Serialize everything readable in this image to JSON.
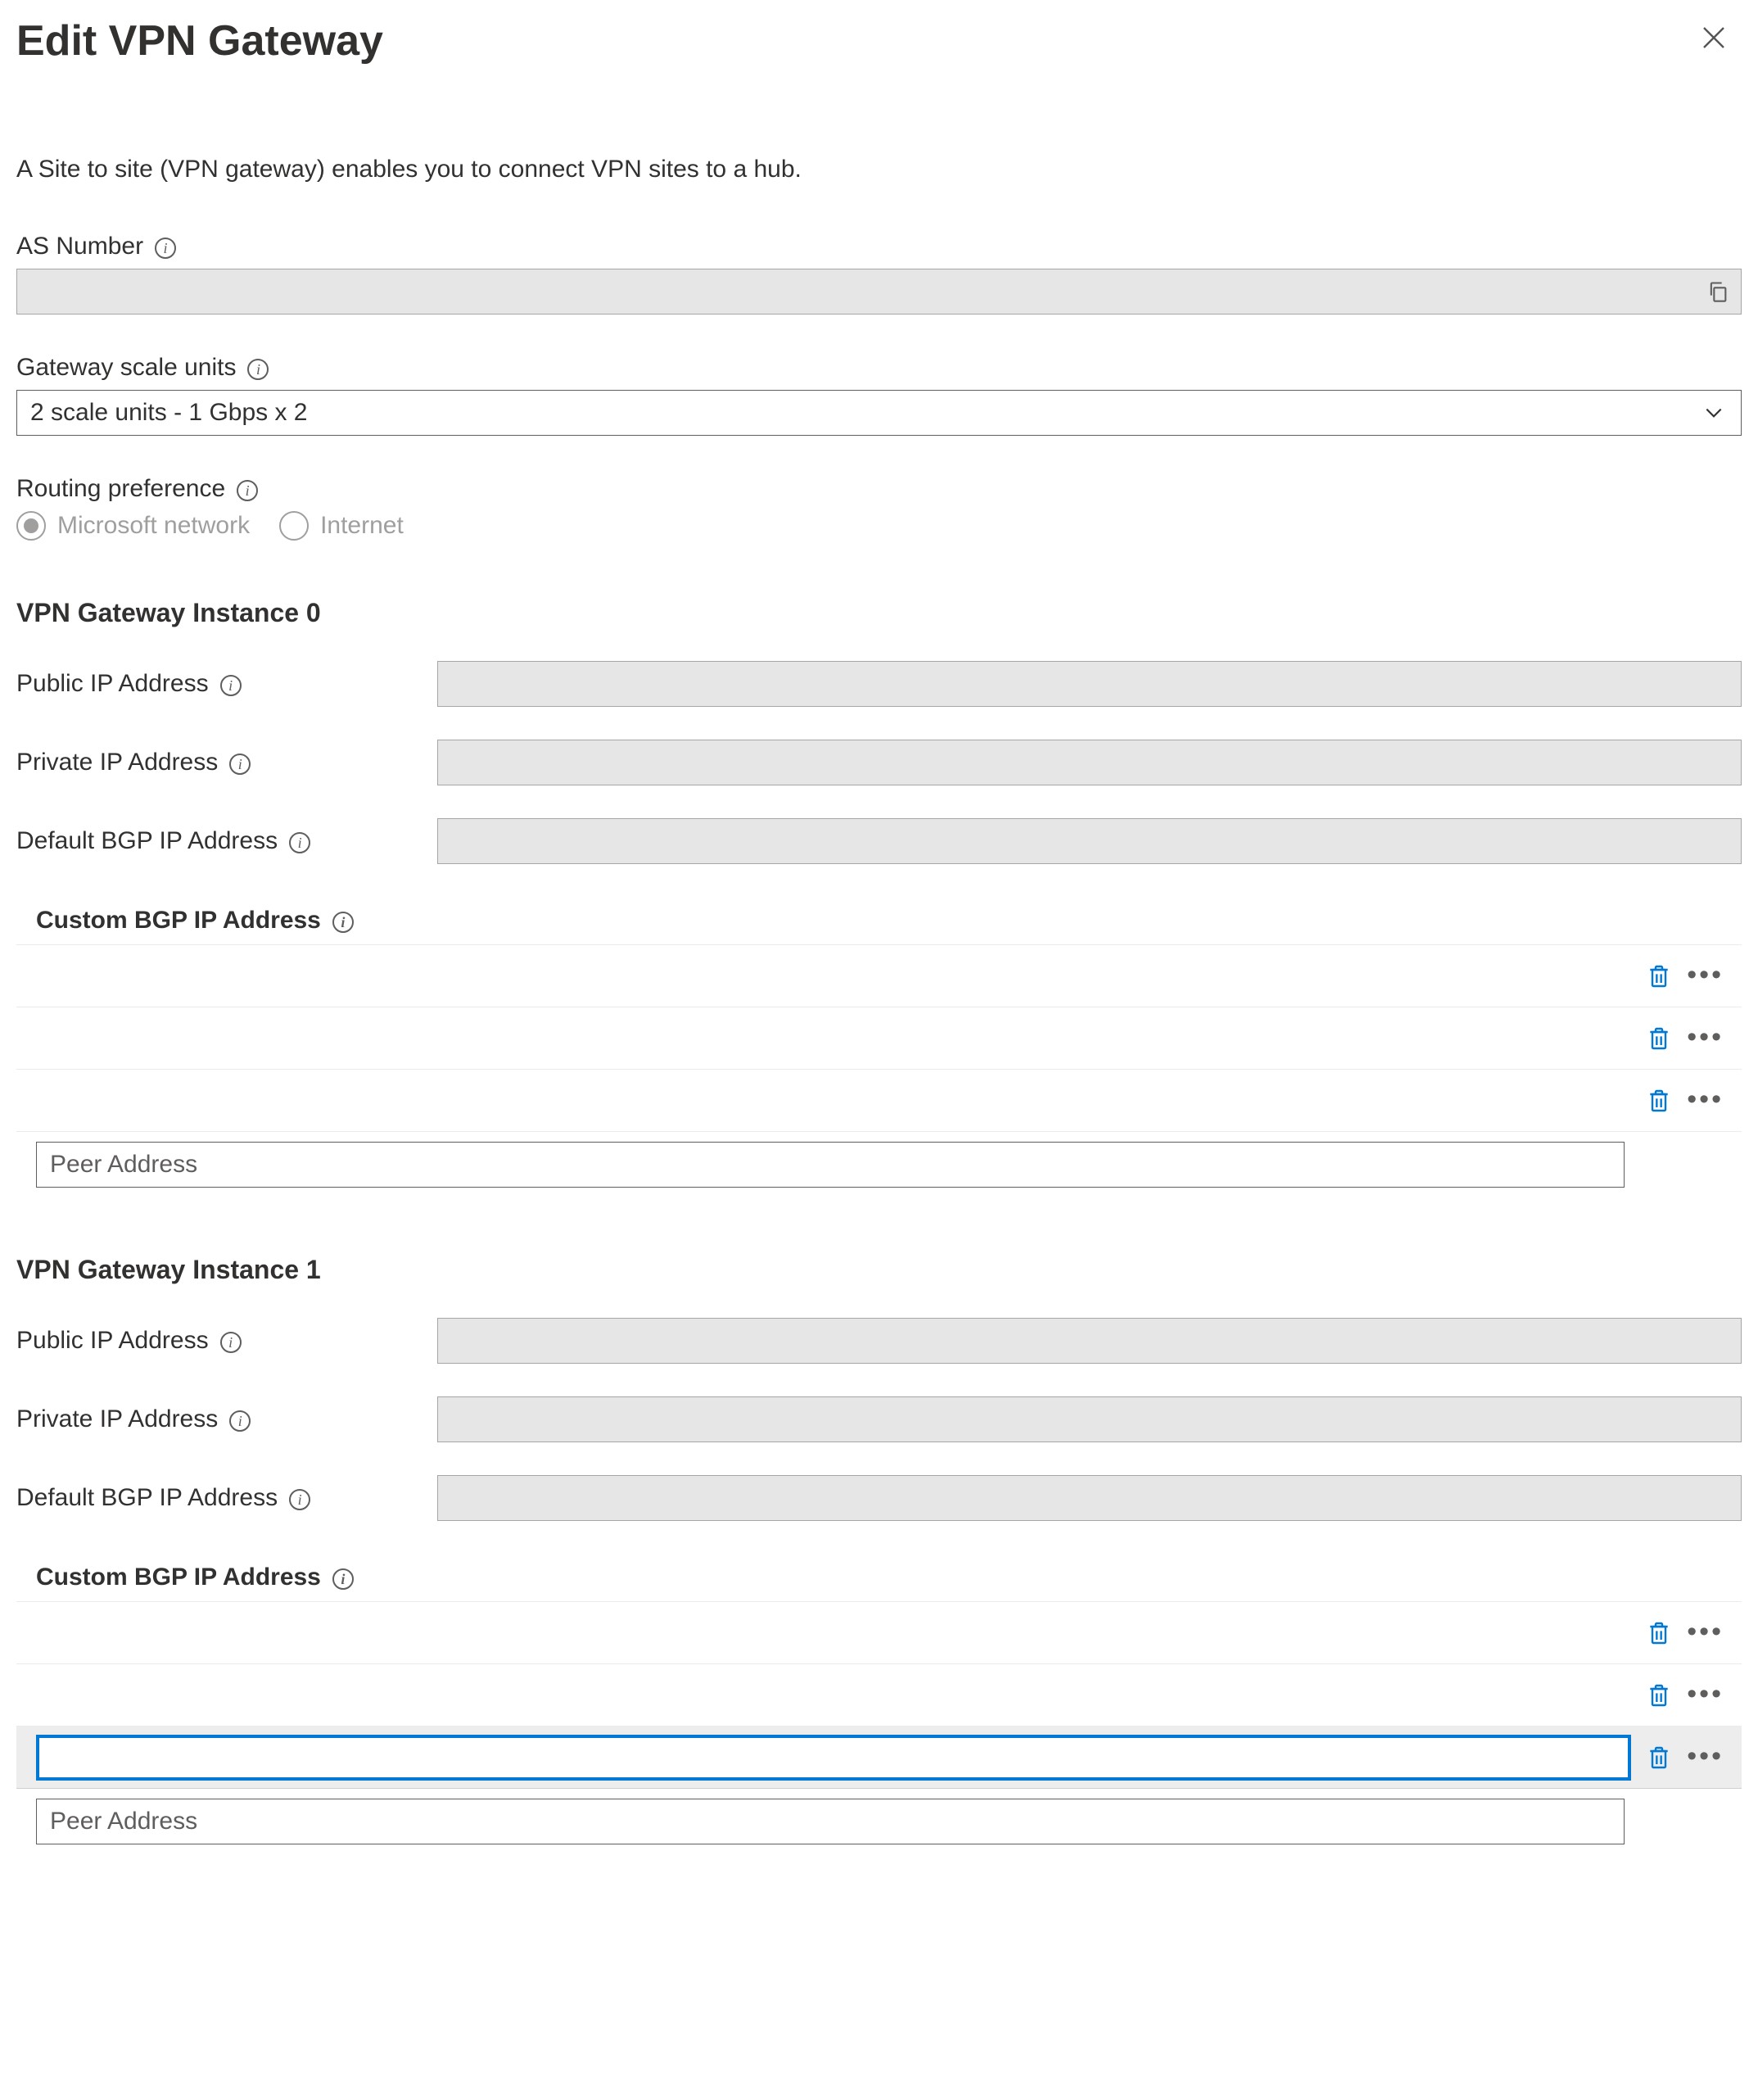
{
  "header": {
    "title": "Edit VPN Gateway"
  },
  "description": "A Site to site (VPN gateway) enables you to connect VPN sites to a hub.",
  "fields": {
    "as_number": {
      "label": "AS Number",
      "value": ""
    },
    "scale_units": {
      "label": "Gateway scale units",
      "value": "2 scale units - 1 Gbps x 2"
    },
    "routing_pref": {
      "label": "Routing preference",
      "options": [
        "Microsoft network",
        "Internet"
      ],
      "selected": "Microsoft network",
      "disabled": true
    }
  },
  "instances": [
    {
      "title": "VPN Gateway Instance 0",
      "public_ip_label": "Public IP Address",
      "public_ip_value": "",
      "private_ip_label": "Private IP Address",
      "private_ip_value": "",
      "default_bgp_label": "Default BGP IP Address",
      "default_bgp_value": "",
      "custom_bgp_label": "Custom BGP IP Address",
      "custom_rows": 3,
      "active_input_row": null,
      "peer_placeholder": "Peer Address"
    },
    {
      "title": "VPN Gateway Instance 1",
      "public_ip_label": "Public IP Address",
      "public_ip_value": "",
      "private_ip_label": "Private IP Address",
      "private_ip_value": "",
      "default_bgp_label": "Default BGP IP Address",
      "default_bgp_value": "",
      "custom_bgp_label": "Custom BGP IP Address",
      "custom_rows": 3,
      "active_input_row": 2,
      "peer_placeholder": "Peer Address"
    }
  ],
  "colors": {
    "accent": "#0078d4",
    "border": "#a8a6a4",
    "text": "#323130",
    "disabled": "#a19f9d",
    "readonly_bg": "#e6e6e6",
    "divider": "#edebe9"
  }
}
